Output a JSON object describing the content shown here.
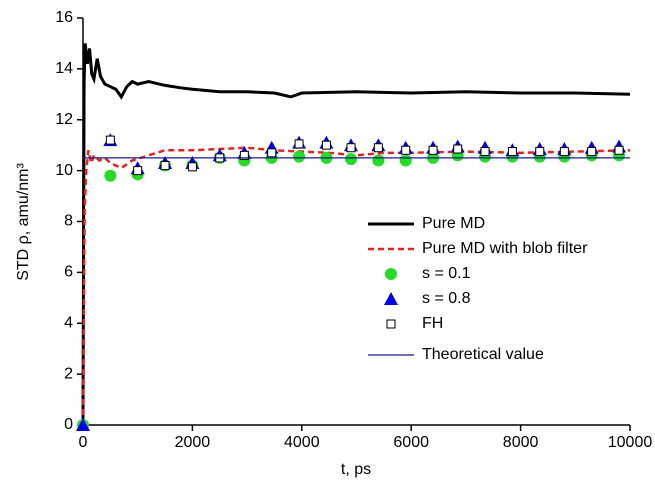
{
  "chart_data": {
    "type": "line",
    "xlabel": "t, ps",
    "ylabel": "STD ρ, amu/nm³",
    "xlim": [
      0,
      10000
    ],
    "xticks": [
      0,
      2000,
      4000,
      6000,
      8000,
      10000
    ],
    "ylim": [
      0,
      16
    ],
    "yticks": [
      0,
      2,
      4,
      6,
      8,
      10,
      12,
      14,
      16
    ],
    "legend_position": "right",
    "series": [
      {
        "name": "Pure MD",
        "mode": "line",
        "color": "#000000",
        "width": 3,
        "x": [
          0,
          20,
          40,
          80,
          120,
          160,
          200,
          260,
          320,
          400,
          500,
          600,
          700,
          800,
          900,
          1000,
          1200,
          1500,
          1800,
          2000,
          2500,
          3000,
          3500,
          3800,
          4000,
          5000,
          6000,
          7000,
          8000,
          9000,
          10000
        ],
        "values": [
          0,
          13.5,
          15.0,
          14.2,
          14.8,
          13.8,
          13.6,
          14.4,
          13.7,
          13.4,
          13.3,
          13.2,
          12.9,
          13.3,
          13.5,
          13.4,
          13.5,
          13.35,
          13.25,
          13.2,
          13.1,
          13.1,
          13.05,
          12.9,
          13.05,
          13.1,
          13.05,
          13.1,
          13.05,
          13.05,
          13.0
        ]
      },
      {
        "name": "Pure MD with blob filter",
        "mode": "line",
        "dash": true,
        "color": "#e8211e",
        "width": 2.5,
        "x": [
          0,
          30,
          60,
          100,
          150,
          200,
          300,
          400,
          500,
          700,
          900,
          1200,
          1500,
          2000,
          2500,
          3000,
          3500,
          4000,
          4500,
          5000,
          5500,
          6000,
          7000,
          8000,
          9000,
          10000
        ],
        "values": [
          0,
          8.5,
          10.0,
          10.8,
          10.3,
          10.6,
          10.4,
          10.5,
          10.3,
          10.1,
          10.4,
          10.6,
          10.8,
          10.8,
          10.85,
          10.9,
          10.8,
          10.75,
          10.7,
          10.6,
          10.7,
          10.7,
          10.75,
          10.7,
          10.75,
          10.8
        ]
      },
      {
        "name": "s = 0.1",
        "mode": "marker",
        "marker": "circle",
        "color": "#22dd22",
        "x": [
          0,
          500,
          1000,
          1500,
          2000,
          2500,
          2950,
          3450,
          3950,
          4450,
          4900,
          5400,
          5900,
          6400,
          6850,
          7350,
          7850,
          8350,
          8800,
          9300,
          9800
        ],
        "values": [
          0,
          9.8,
          9.85,
          10.2,
          10.2,
          10.5,
          10.4,
          10.5,
          10.55,
          10.5,
          10.45,
          10.4,
          10.4,
          10.5,
          10.6,
          10.55,
          10.55,
          10.55,
          10.55,
          10.6,
          10.6
        ]
      },
      {
        "name": "s = 0.8",
        "mode": "marker",
        "marker": "triangle",
        "color": "#0000ee",
        "x": [
          0,
          500,
          1000,
          1500,
          2000,
          2500,
          2950,
          3450,
          3950,
          4450,
          4900,
          5400,
          5900,
          6400,
          6850,
          7350,
          7850,
          8350,
          8800,
          9300,
          9800
        ],
        "values": [
          0,
          11.2,
          10.1,
          10.3,
          10.3,
          10.6,
          10.7,
          10.9,
          11.1,
          11.1,
          11.0,
          11.0,
          10.9,
          10.9,
          10.95,
          10.9,
          10.8,
          10.85,
          10.85,
          10.9,
          10.95
        ]
      },
      {
        "name": "FH",
        "mode": "marker",
        "marker": "square",
        "color": "#000000",
        "x": [
          500,
          1000,
          1500,
          2000,
          2500,
          2950,
          3450,
          3950,
          4450,
          4900,
          5400,
          5900,
          6400,
          6850,
          7350,
          7850,
          8350,
          8800,
          9300,
          9800
        ],
        "values": [
          11.2,
          10.0,
          10.2,
          10.15,
          10.5,
          10.6,
          10.7,
          11.05,
          11.0,
          10.9,
          10.9,
          10.8,
          10.8,
          10.85,
          10.75,
          10.75,
          10.75,
          10.75,
          10.75,
          10.8
        ]
      },
      {
        "name": "Theoretical value",
        "mode": "line",
        "color": "#1a1a8c",
        "width": 1.2,
        "x": [
          0,
          10000
        ],
        "values": [
          10.5,
          10.5
        ]
      }
    ]
  }
}
